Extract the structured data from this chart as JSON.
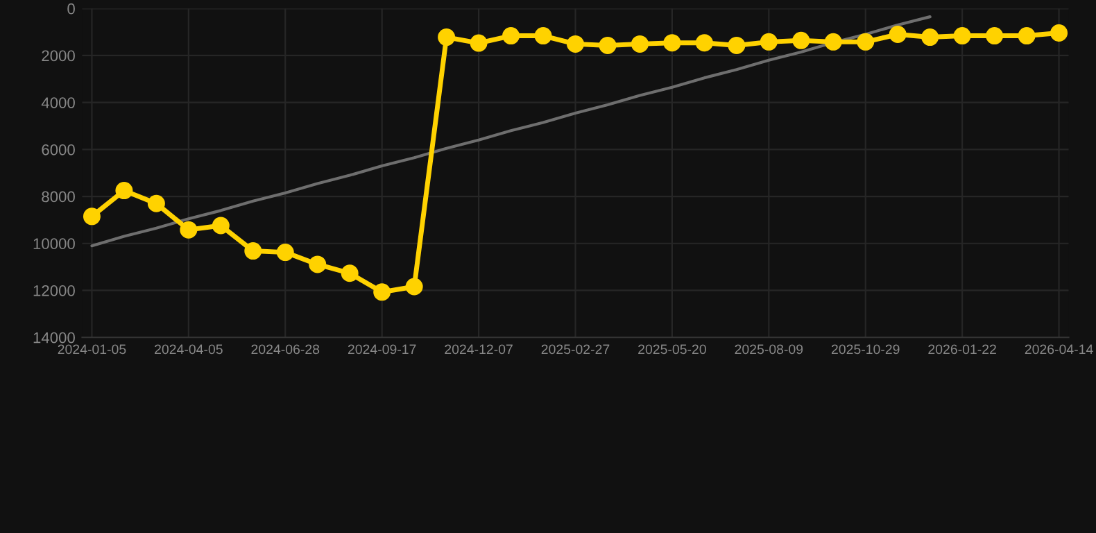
{
  "chart_data": {
    "type": "line",
    "categories": [
      "2024-01-05",
      null,
      null,
      "2024-04-05",
      null,
      null,
      "2024-06-28",
      null,
      null,
      "2024-09-17",
      null,
      null,
      "2024-12-07",
      null,
      null,
      "2025-02-27",
      null,
      null,
      "2025-05-20",
      null,
      null,
      "2025-08-09",
      null,
      null,
      "2025-10-29",
      null,
      null,
      "2026-01-22",
      null,
      null,
      "2026-04-14"
    ],
    "series": [
      {
        "color": "#ffd200",
        "marker": "circle",
        "values": [
          8850,
          7750,
          8300,
          9420,
          9240,
          10320,
          10380,
          10890,
          11270,
          12070,
          11840,
          1220,
          1470,
          1160,
          1160,
          1510,
          1570,
          1510,
          1460,
          1460,
          1570,
          1420,
          1360,
          1420,
          1420,
          1100,
          1220,
          1160,
          1160,
          1160,
          1040
        ]
      },
      {
        "color": "#6e6e6e",
        "marker": "none",
        "values": [
          10100,
          9700,
          9350,
          8950,
          8600,
          8200,
          7850,
          7450,
          7100,
          6700,
          6350,
          5950,
          5600,
          5200,
          4850,
          4450,
          4100,
          3700,
          3350,
          2950,
          2600,
          2200,
          1850,
          1450,
          1100,
          700,
          350,
          null,
          null,
          null,
          null
        ]
      }
    ],
    "ylim": [
      14000,
      0
    ],
    "yticks": [
      0,
      2000,
      4000,
      6000,
      8000,
      10000,
      12000,
      14000
    ],
    "grid": true
  }
}
